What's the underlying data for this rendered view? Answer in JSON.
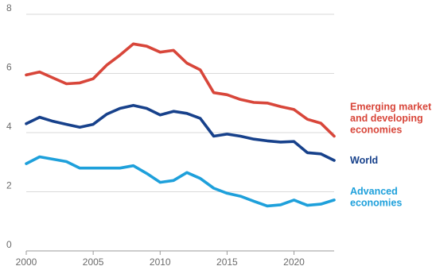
{
  "chart_data": {
    "type": "line",
    "title": "",
    "xlabel": "",
    "ylabel": "",
    "xlim": [
      2000,
      2023
    ],
    "ylim": [
      0,
      8
    ],
    "y_ticks": [
      0,
      2,
      4,
      6,
      8
    ],
    "x_ticks": [
      2000,
      2005,
      2010,
      2015,
      2020
    ],
    "y_tick_labels": [
      "0",
      "2",
      "4",
      "6",
      "8"
    ],
    "x_tick_labels": [
      "2000",
      "2005",
      "2010",
      "2015",
      "2020"
    ],
    "grid": "horizontal",
    "legend": "direct labels at right end of lines",
    "x": [
      2000,
      2001,
      2002,
      2003,
      2004,
      2005,
      2006,
      2007,
      2008,
      2009,
      2010,
      2011,
      2012,
      2013,
      2014,
      2015,
      2016,
      2017,
      2018,
      2019,
      2020,
      2021,
      2022,
      2023
    ],
    "series": [
      {
        "key": "emde",
        "label_lines": [
          "Emerging market",
          "and developing",
          "economies"
        ],
        "color": "#d8463a",
        "values": [
          5.95,
          6.05,
          5.85,
          5.65,
          5.68,
          5.82,
          6.28,
          6.62,
          7.0,
          6.92,
          6.72,
          6.78,
          6.35,
          6.12,
          5.35,
          5.28,
          5.12,
          5.02,
          5.0,
          4.88,
          4.78,
          4.45,
          4.32,
          3.88
        ]
      },
      {
        "key": "world",
        "label_lines": [
          "World"
        ],
        "color": "#17418b",
        "values": [
          4.3,
          4.52,
          4.38,
          4.28,
          4.18,
          4.28,
          4.62,
          4.82,
          4.92,
          4.82,
          4.6,
          4.72,
          4.65,
          4.48,
          3.88,
          3.95,
          3.88,
          3.78,
          3.72,
          3.68,
          3.7,
          3.32,
          3.28,
          3.06
        ]
      },
      {
        "key": "advanced",
        "label_lines": [
          "Advanced",
          "economies"
        ],
        "color": "#1ea0db",
        "values": [
          2.95,
          3.18,
          3.1,
          3.02,
          2.8,
          2.8,
          2.8,
          2.8,
          2.88,
          2.62,
          2.32,
          2.38,
          2.65,
          2.45,
          2.12,
          1.95,
          1.85,
          1.68,
          1.52,
          1.56,
          1.72,
          1.54,
          1.58,
          1.72
        ]
      }
    ]
  }
}
